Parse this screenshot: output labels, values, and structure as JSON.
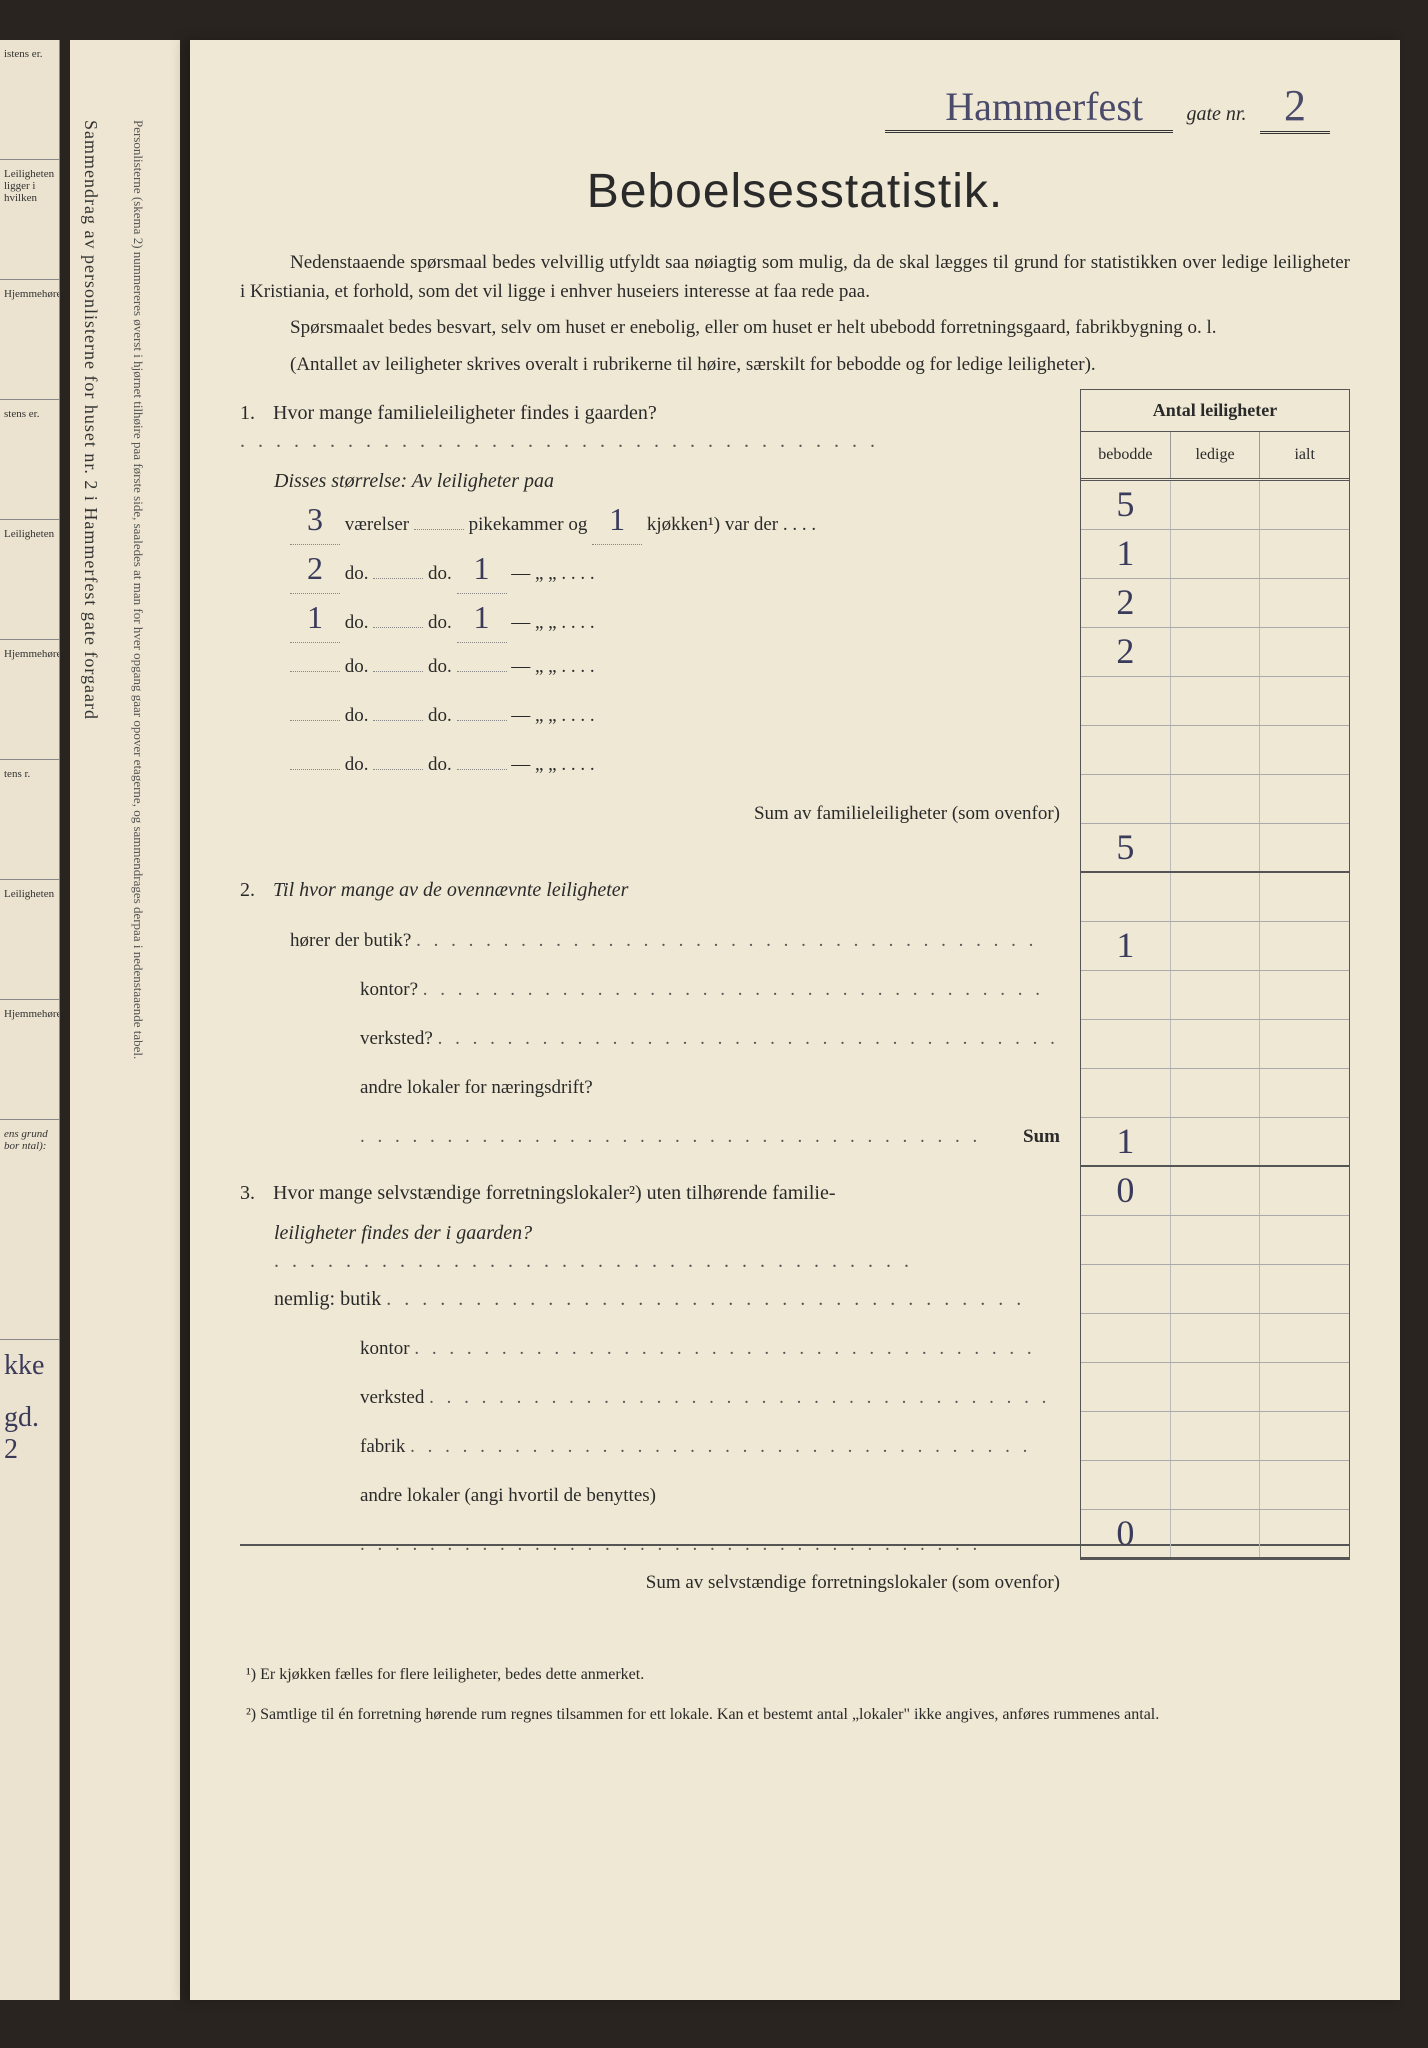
{
  "header": {
    "street_handwritten": "Hammerfest",
    "gate_label": "gate nr.",
    "number_handwritten": "2"
  },
  "title": "Beboelsesstatistik.",
  "intro": {
    "p1": "Nedenstaaende spørsmaal bedes velvillig utfyldt saa nøiagtig som mulig, da de skal lægges til grund for statistikken over ledige leiligheter i Kristiania, et forhold, som det vil ligge i enhver huseiers interesse at faa rede paa.",
    "p2": "Spørsmaalet bedes besvart, selv om huset er enebolig, eller om huset er helt ubebodd forretningsgaard, fabrikbygning o. l.",
    "p3": "(Antallet av leiligheter skrives overalt i rubrikerne til høire, særskilt for bebodde og for ledige leiligheter)."
  },
  "table": {
    "header": "Antal leiligheter",
    "cols": {
      "c1": "bebodde",
      "c2": "ledige",
      "c3": "ialt"
    },
    "rows": [
      {
        "b": "5",
        "l": "",
        "i": ""
      },
      {
        "b": "1",
        "l": "",
        "i": ""
      },
      {
        "b": "2",
        "l": "",
        "i": ""
      },
      {
        "b": "2",
        "l": "",
        "i": ""
      },
      {
        "b": "",
        "l": "",
        "i": ""
      },
      {
        "b": "",
        "l": "",
        "i": ""
      },
      {
        "b": "",
        "l": "",
        "i": ""
      },
      {
        "b": "5",
        "l": "",
        "i": ""
      },
      {
        "b": "",
        "l": "",
        "i": ""
      },
      {
        "b": "1",
        "l": "",
        "i": ""
      },
      {
        "b": "",
        "l": "",
        "i": ""
      },
      {
        "b": "",
        "l": "",
        "i": ""
      },
      {
        "b": "",
        "l": "",
        "i": ""
      },
      {
        "b": "1",
        "l": "",
        "i": ""
      },
      {
        "b": "0",
        "l": "",
        "i": ""
      },
      {
        "b": "",
        "l": "",
        "i": ""
      },
      {
        "b": "",
        "l": "",
        "i": ""
      },
      {
        "b": "",
        "l": "",
        "i": ""
      },
      {
        "b": "",
        "l": "",
        "i": ""
      },
      {
        "b": "",
        "l": "",
        "i": ""
      },
      {
        "b": "",
        "l": "",
        "i": ""
      },
      {
        "b": "0",
        "l": "",
        "i": ""
      }
    ]
  },
  "q1": {
    "text": "Hvor mange familieleiligheter findes i gaarden?",
    "disses": "Disses størrelse: Av leiligheter paa",
    "rows": [
      {
        "v": "3",
        "lab1": "værelser",
        "p": "",
        "lab2": "pikekammer og",
        "k": "1",
        "lab3": "kjøkken¹) var der"
      },
      {
        "v": "2",
        "lab1": "do.",
        "p": "",
        "lab2": "do.",
        "k": "1",
        "lab3": "—     „    „"
      },
      {
        "v": "1",
        "lab1": "do.",
        "p": "",
        "lab2": "do.",
        "k": "1",
        "lab3": "—     „    „"
      },
      {
        "v": "",
        "lab1": "do.",
        "p": "",
        "lab2": "do.",
        "k": "",
        "lab3": "—     „    „"
      },
      {
        "v": "",
        "lab1": "do.",
        "p": "",
        "lab2": "do.",
        "k": "",
        "lab3": "—     „    „"
      },
      {
        "v": "",
        "lab1": "do.",
        "p": "",
        "lab2": "do.",
        "k": "",
        "lab3": "—     „    „"
      }
    ],
    "sum": "Sum av familieleiligheter (som ovenfor)"
  },
  "q2": {
    "text": "Til hvor mange av de ovennævnte leiligheter",
    "lines": [
      "hører der butik?",
      "kontor?",
      "verksted?",
      "andre lokaler for næringsdrift?"
    ],
    "sum": "Sum"
  },
  "q3": {
    "text_a": "Hvor mange selvstændige forretningslokaler²) uten tilhørende familie-",
    "text_b": "leiligheter findes der i gaarden?",
    "nemlig": "nemlig: butik",
    "lines": [
      "kontor",
      "verksted",
      "fabrik",
      "andre lokaler (angi hvortil de benyttes)"
    ],
    "sum": "Sum av selvstændige forretningslokaler (som ovenfor)"
  },
  "footnotes": {
    "f1": "¹) Er kjøkken fælles for flere leiligheter, bedes dette anmerket.",
    "f2": "²) Samtlige til én forretning hørende rum regnes tilsammen for ett lokale. Kan et bestemt antal „lokaler\" ikke angives, anføres rummenes antal."
  },
  "leftstrip": {
    "c1": "istens\ner.",
    "c2": "Leiligheten\nligger i hvilken",
    "c3": "Hjemmehørende¹)",
    "c4": "stens\ner.",
    "c5": "Leiligheten",
    "c6": "Hjemmehørende¹)",
    "c7": "tens\nr.",
    "c8": "Leiligheten",
    "c9": "Hjemmehørende¹)",
    "h1": "ens grund bor\nntal):",
    "h2": "kke",
    "h3": "gd. 2"
  },
  "midstrip": {
    "main": "Sammendrag av personlisterne for huset nr. 2 i Hammerfest gate forgaard",
    "small": "Personlisterne (skema 2) nummereres øverst i hjørnet tilhøire paa første side, saaledes at man for hver opgang gaar opover etagerne, og sammendrages derpaa i nedenstaaende tabel."
  }
}
